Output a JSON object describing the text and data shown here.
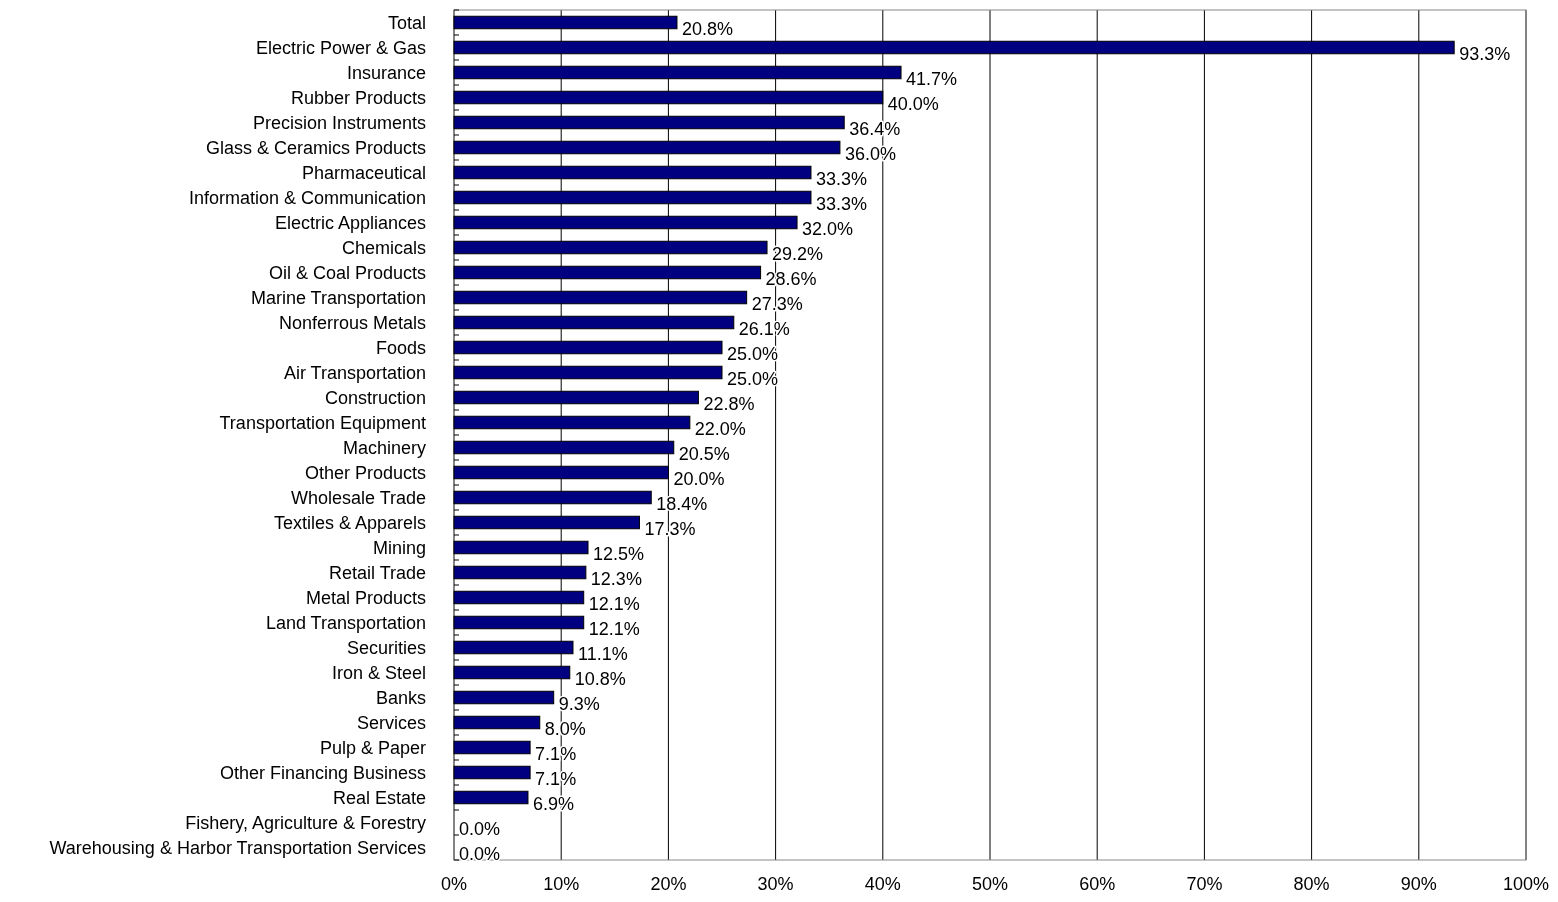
{
  "chart_data": {
    "type": "bar",
    "orientation": "horizontal",
    "categories": [
      "Total",
      "Electric Power & Gas",
      "Insurance",
      "Rubber Products",
      "Precision Instruments",
      "Glass & Ceramics Products",
      "Pharmaceutical",
      "Information & Communication",
      "Electric Appliances",
      "Chemicals",
      "Oil & Coal Products",
      "Marine Transportation",
      "Nonferrous Metals",
      "Foods",
      "Air Transportation",
      "Construction",
      "Transportation Equipment",
      "Machinery",
      "Other Products",
      "Wholesale Trade",
      "Textiles & Apparels",
      "Mining",
      "Retail Trade",
      "Metal Products",
      "Land Transportation",
      "Securities",
      "Iron & Steel",
      "Banks",
      "Services",
      "Pulp & Paper",
      "Other Financing Business",
      "Real Estate",
      "Fishery, Agriculture & Forestry",
      "Warehousing & Harbor Transportation Services"
    ],
    "values": [
      20.8,
      93.3,
      41.7,
      40.0,
      36.4,
      36.0,
      33.3,
      33.3,
      32.0,
      29.2,
      28.6,
      27.3,
      26.1,
      25.0,
      25.0,
      22.8,
      22.0,
      20.5,
      20.0,
      18.4,
      17.3,
      12.5,
      12.3,
      12.1,
      12.1,
      11.1,
      10.8,
      9.3,
      8.0,
      7.1,
      7.1,
      6.9,
      0.0,
      0.0
    ],
    "value_labels": [
      "20.8%",
      "93.3%",
      "41.7%",
      "40.0%",
      "36.4%",
      "36.0%",
      "33.3%",
      "33.3%",
      "32.0%",
      "29.2%",
      "28.6%",
      "27.3%",
      "26.1%",
      "25.0%",
      "25.0%",
      "22.8%",
      "22.0%",
      "20.5%",
      "20.0%",
      "18.4%",
      "17.3%",
      "12.5%",
      "12.3%",
      "12.1%",
      "12.1%",
      "11.1%",
      "10.8%",
      "9.3%",
      "8.0%",
      "7.1%",
      "7.1%",
      "6.9%",
      "0.0%",
      "0.0%"
    ],
    "color": "#000080",
    "xlim": [
      0,
      100
    ],
    "xticks": [
      {
        "value": 0,
        "label": "0%"
      },
      {
        "value": 10,
        "label": "10%"
      },
      {
        "value": 20,
        "label": "20%"
      },
      {
        "value": 30,
        "label": "30%"
      },
      {
        "value": 40,
        "label": "40%"
      },
      {
        "value": 50,
        "label": "50%"
      },
      {
        "value": 60,
        "label": "60%"
      },
      {
        "value": 70,
        "label": "70%"
      },
      {
        "value": 80,
        "label": "80%"
      },
      {
        "value": 90,
        "label": "90%"
      },
      {
        "value": 100,
        "label": "100%"
      }
    ],
    "grid": "x"
  }
}
